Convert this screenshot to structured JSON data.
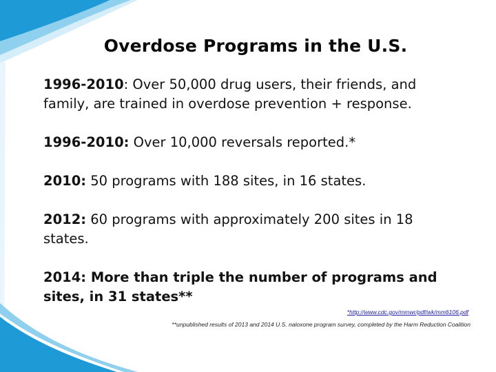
{
  "slide": {
    "title": "Overdose Programs in the U.S.",
    "items": [
      {
        "label": "1996-2010",
        "label_suffix": ":",
        "text": " Over 50,000 drug users, their friends, and family, are trained in overdose prevention + response."
      },
      {
        "label": "1996-2010:",
        "text": " Over 10,000 reversals reported.*"
      },
      {
        "label": "2010:",
        "text": " 50 programs with 188 sites, in 16 states."
      },
      {
        "label": "2012:",
        "text": " 60 programs with approximately 200 sites in 18 states."
      },
      {
        "text": "2014: More than triple the number of programs and sites, in 31 states**"
      }
    ],
    "footnotes": {
      "link": "*http://www.cdc.gov/mmwr/pdf/wk/mm6106.pdf",
      "note": "**unpublished results of 2013 and 2014 U.S. naloxone program survey, completed by the Harm Reduction Coalition"
    }
  },
  "colors": {
    "accent_blue": "#1e9ad6",
    "accent_light": "#8fd0ef",
    "link": "#1a1aa6"
  }
}
